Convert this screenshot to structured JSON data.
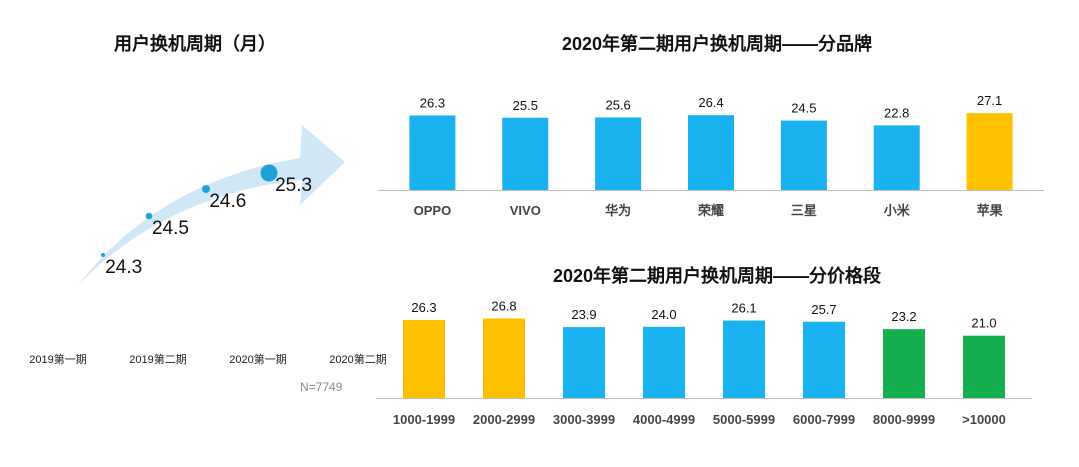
{
  "colors": {
    "blue": "#1AB1F0",
    "orange": "#FFC000",
    "green": "#15B04E",
    "dot": "#1EA3D8",
    "arrow": "#CFE7F7",
    "axis": "#BFBFBF"
  },
  "chart_data": [
    {
      "type": "line",
      "title": "用户换机周期（月）",
      "categories": [
        "2019第一期",
        "2019第二期",
        "2020第一期",
        "2020第二期"
      ],
      "values": [
        24.3,
        24.5,
        24.6,
        25.3
      ],
      "value_labels": [
        "24.3",
        "24.5",
        "24.6",
        "25.3"
      ],
      "note": "N=7749"
    },
    {
      "type": "bar",
      "title": "2020年第二期用户换机周期——分品牌",
      "categories": [
        "OPPO",
        "VIVO",
        "华为",
        "荣耀",
        "三星",
        "小米",
        "苹果"
      ],
      "values": [
        26.3,
        25.5,
        25.6,
        26.4,
        24.5,
        22.8,
        27.1
      ],
      "value_labels": [
        "26.3",
        "25.5",
        "25.6",
        "26.4",
        "24.5",
        "22.8",
        "27.1"
      ],
      "bar_colors": [
        "blue",
        "blue",
        "blue",
        "blue",
        "blue",
        "blue",
        "orange"
      ],
      "ylim": [
        0,
        30
      ]
    },
    {
      "type": "bar",
      "title": "2020年第二期用户换机周期——分价格段",
      "categories": [
        "1000-1999",
        "2000-2999",
        "3000-3999",
        "4000-4999",
        "5000-5999",
        "6000-7999",
        "8000-9999",
        ">10000"
      ],
      "values": [
        26.3,
        26.8,
        23.9,
        24.0,
        26.1,
        25.7,
        23.2,
        21.0
      ],
      "value_labels": [
        "26.3",
        "26.8",
        "23.9",
        "24.0",
        "26.1",
        "25.7",
        "23.2",
        "21.0"
      ],
      "bar_colors": [
        "orange",
        "orange",
        "blue",
        "blue",
        "blue",
        "blue",
        "green",
        "green"
      ],
      "ylim": [
        0,
        30
      ]
    }
  ]
}
